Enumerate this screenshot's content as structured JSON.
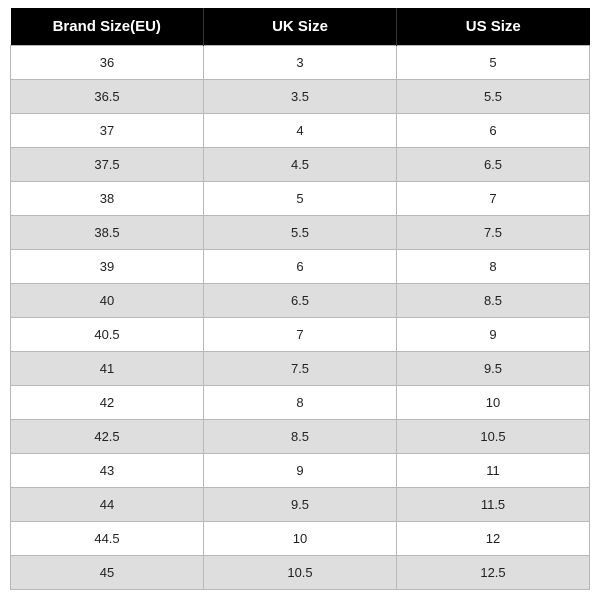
{
  "table": {
    "type": "table",
    "columns": [
      "Brand Size(EU)",
      "UK Size",
      "US Size"
    ],
    "rows": [
      [
        "36",
        "3",
        "5"
      ],
      [
        "36.5",
        "3.5",
        "5.5"
      ],
      [
        "37",
        "4",
        "6"
      ],
      [
        "37.5",
        "4.5",
        "6.5"
      ],
      [
        "38",
        "5",
        "7"
      ],
      [
        "38.5",
        "5.5",
        "7.5"
      ],
      [
        "39",
        "6",
        "8"
      ],
      [
        "40",
        "6.5",
        "8.5"
      ],
      [
        "40.5",
        "7",
        "9"
      ],
      [
        "41",
        "7.5",
        "9.5"
      ],
      [
        "42",
        "8",
        "10"
      ],
      [
        "42.5",
        "8.5",
        "10.5"
      ],
      [
        "43",
        "9",
        "11"
      ],
      [
        "44",
        "9.5",
        "11.5"
      ],
      [
        "44.5",
        "10",
        "12"
      ],
      [
        "45",
        "10.5",
        "12.5"
      ]
    ],
    "header_bg": "#000000",
    "header_fg": "#ffffff",
    "row_bg_odd": "#ffffff",
    "row_bg_even": "#dedede",
    "border_color": "#b8b8b8",
    "header_fontsize": 15,
    "cell_fontsize": 13
  }
}
